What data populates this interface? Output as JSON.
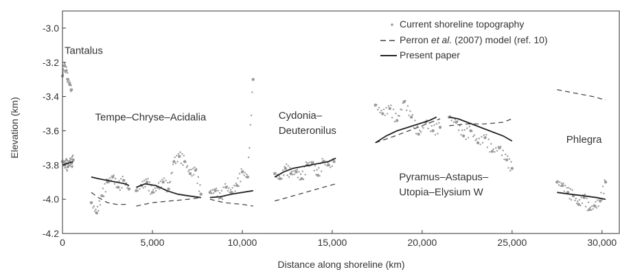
{
  "chart_data": {
    "type": "scatter",
    "title": "",
    "xlabel": "Distance along shoreline (km)",
    "ylabel": "Elevation (km)",
    "xlim": [
      0,
      31000
    ],
    "ylim": [
      -4.2,
      -2.9
    ],
    "xticks": [
      0,
      5000,
      10000,
      15000,
      20000,
      25000,
      30000
    ],
    "xtick_labels": [
      "0",
      "5,000",
      "10,000",
      "15,000",
      "20,000",
      "25,000",
      "30,000"
    ],
    "yticks": [
      -4.2,
      -4.0,
      -3.8,
      -3.6,
      -3.4,
      -3.2,
      -3.0
    ],
    "ytick_labels": [
      "-4.2",
      "-4.0",
      "-3.8",
      "-3.6",
      "-3.4",
      "-3.2",
      "-3.0"
    ],
    "grid": false,
    "legend_position": "top-right",
    "legend": [
      {
        "label_parts": [
          "Current shoreline topography"
        ],
        "style": "dots"
      },
      {
        "label_parts": [
          "Perron ",
          "et al.",
          " (2007) model (ref. 10)"
        ],
        "style": "dashed"
      },
      {
        "label_parts": [
          "Present paper"
        ],
        "style": "solid"
      }
    ],
    "annotations": [
      {
        "lines": [
          "Tantalus"
        ],
        "x": 0,
        "y": -3.15
      },
      {
        "lines": [
          "Tempe–Chryse–Acidalia"
        ],
        "x": 1700,
        "y": -3.54
      },
      {
        "lines": [
          "Cydonia–",
          "Deuteronilus"
        ],
        "x": 11900,
        "y": -3.53
      },
      {
        "lines": [
          "Pyramus–Astapus–",
          "Utopia–Elysium W"
        ],
        "x": 18600,
        "y": -3.89
      },
      {
        "lines": [
          "Phlegra"
        ],
        "x": 27900,
        "y": -3.67
      }
    ],
    "colors": {
      "topography": "#9a9a9a",
      "model": "#444444",
      "paper": "#222222",
      "axis": "#333333"
    },
    "series": [
      {
        "name": "Current shoreline topography",
        "style": "dots",
        "segments": [
          {
            "x": [
              0,
              100,
              200,
              300,
              400,
              500
            ],
            "y": [
              -3.28,
              -3.22,
              -3.25,
              -3.3,
              -3.33,
              -3.36
            ]
          },
          {
            "x": [
              0,
              100,
              200,
              300,
              400,
              500,
              600
            ],
            "y": [
              -3.78,
              -3.8,
              -3.79,
              -3.81,
              -3.78,
              -3.79,
              -3.77
            ]
          },
          {
            "x": [
              1600,
              1900,
              2200,
              2500,
              2800,
              3100,
              3400,
              3700
            ],
            "y": [
              -4.02,
              -4.08,
              -3.98,
              -3.9,
              -3.87,
              -3.93,
              -3.89,
              -3.94
            ]
          },
          {
            "x": [
              4100,
              4400,
              4700,
              5000,
              5300,
              5600,
              5900,
              6200,
              6500,
              6800,
              7100,
              7400,
              7700
            ],
            "y": [
              -3.95,
              -3.92,
              -3.9,
              -3.96,
              -3.93,
              -3.9,
              -3.94,
              -3.78,
              -3.75,
              -3.78,
              -3.85,
              -3.83,
              -3.97
            ]
          },
          {
            "x": [
              8200,
              8500,
              8800,
              9100,
              9400,
              9700,
              10000,
              10300,
              10600
            ],
            "y": [
              -3.96,
              -3.95,
              -3.99,
              -3.93,
              -3.96,
              -3.92,
              -3.84,
              -3.87,
              -3.3
            ]
          },
          {
            "x": [
              11800,
              12100,
              12400,
              12700,
              13000,
              13300,
              13600,
              13900,
              14200,
              14500,
              14800,
              15100
            ],
            "y": [
              -3.85,
              -3.88,
              -3.82,
              -3.85,
              -3.84,
              -3.88,
              -3.8,
              -3.79,
              -3.86,
              -3.78,
              -3.8,
              -3.78
            ]
          },
          {
            "x": [
              17400,
              17800,
              18200,
              18600,
              19000,
              19400,
              19800,
              20200,
              20600,
              21000
            ],
            "y": [
              -3.45,
              -3.5,
              -3.47,
              -3.54,
              -3.43,
              -3.52,
              -3.62,
              -3.55,
              -3.6,
              -3.58
            ]
          },
          {
            "x": [
              21500,
              21900,
              22300,
              22700,
              23100,
              23500,
              23900,
              24300,
              24700,
              25000
            ],
            "y": [
              -3.52,
              -3.55,
              -3.63,
              -3.6,
              -3.67,
              -3.64,
              -3.72,
              -3.7,
              -3.77,
              -3.82
            ]
          },
          {
            "x": [
              27500,
              27800,
              28100,
              28400,
              28700,
              29000,
              29300,
              29600,
              29900,
              30200
            ],
            "y": [
              -3.9,
              -3.92,
              -3.96,
              -3.98,
              -4.03,
              -3.99,
              -4.06,
              -4.04,
              -4.01,
              -3.9
            ]
          }
        ]
      },
      {
        "name": "Perron et al. (2007) model (ref. 10)",
        "style": "dashed",
        "segments": [
          {
            "x": [
              1600,
              2000,
              2500,
              3000,
              3500,
              3700
            ],
            "y": [
              -3.96,
              -3.99,
              -4.02,
              -4.03,
              -4.03,
              -4.02
            ]
          },
          {
            "x": [
              4100,
              5000,
              6000,
              7000,
              7700
            ],
            "y": [
              -4.04,
              -4.02,
              -4.01,
              -4.0,
              -3.99
            ]
          },
          {
            "x": [
              8200,
              9000,
              10000,
              10600
            ],
            "y": [
              -4.0,
              -4.02,
              -4.03,
              -4.04
            ]
          },
          {
            "x": [
              11800,
              12500,
              13500,
              14500,
              15200
            ],
            "y": [
              -4.01,
              -3.99,
              -3.96,
              -3.93,
              -3.91
            ]
          },
          {
            "x": [
              17400,
              18500,
              19500,
              20500,
              21000
            ],
            "y": [
              -3.67,
              -3.63,
              -3.59,
              -3.55,
              -3.53
            ]
          },
          {
            "x": [
              21500,
              22500,
              23500,
              24500,
              25000
            ],
            "y": [
              -3.57,
              -3.56,
              -3.56,
              -3.55,
              -3.53
            ]
          },
          {
            "x": [
              27500,
              28500,
              29500,
              30200
            ],
            "y": [
              -3.36,
              -3.38,
              -3.4,
              -3.42
            ]
          }
        ]
      },
      {
        "name": "Present paper",
        "style": "solid",
        "segments": [
          {
            "x": [
              0,
              300,
              600
            ],
            "y": [
              -3.8,
              -3.79,
              -3.78
            ]
          },
          {
            "x": [
              1600,
              2000,
              2500,
              3000,
              3500,
              3700
            ],
            "y": [
              -3.87,
              -3.88,
              -3.89,
              -3.9,
              -3.91,
              -3.92
            ]
          },
          {
            "x": [
              4100,
              4600,
              5200,
              5800,
              6400,
              7000,
              7700
            ],
            "y": [
              -3.93,
              -3.91,
              -3.92,
              -3.95,
              -3.97,
              -3.98,
              -3.99
            ]
          },
          {
            "x": [
              8200,
              8800,
              9400,
              10000,
              10600
            ],
            "y": [
              -3.99,
              -3.985,
              -3.97,
              -3.96,
              -3.95
            ]
          },
          {
            "x": [
              11800,
              12300,
              12800,
              13300,
              13800,
              14300,
              14800,
              15200
            ],
            "y": [
              -3.87,
              -3.84,
              -3.82,
              -3.81,
              -3.8,
              -3.79,
              -3.78,
              -3.76
            ]
          },
          {
            "x": [
              17400,
              18000,
              18600,
              19200,
              19800,
              20400,
              20800
            ],
            "y": [
              -3.67,
              -3.63,
              -3.6,
              -3.58,
              -3.56,
              -3.54,
              -3.52
            ]
          },
          {
            "x": [
              21500,
              22000,
              22500,
              23000,
              23500,
              24000,
              24500,
              25000
            ],
            "y": [
              -3.52,
              -3.53,
              -3.55,
              -3.57,
              -3.59,
              -3.61,
              -3.63,
              -3.66
            ]
          },
          {
            "x": [
              27500,
              28200,
              29000,
              29700,
              30200
            ],
            "y": [
              -3.96,
              -3.97,
              -3.98,
              -3.99,
              -4.0
            ]
          }
        ]
      }
    ]
  }
}
